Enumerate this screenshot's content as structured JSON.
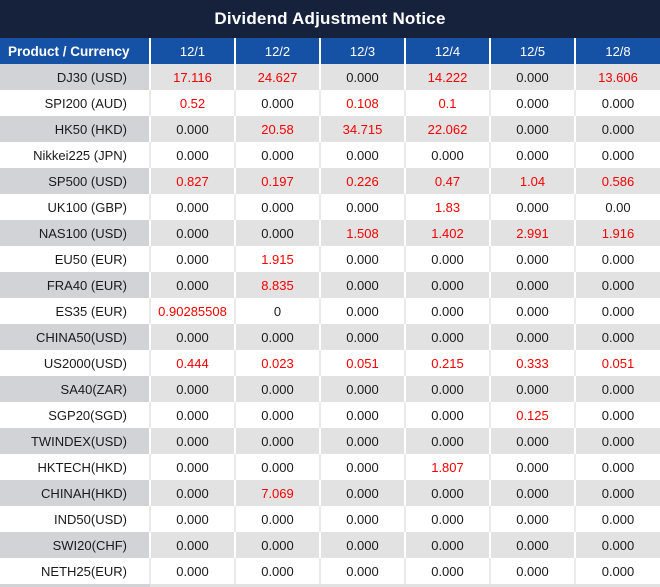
{
  "header": {
    "title": "Dividend Adjustment Notice"
  },
  "table": {
    "columns": [
      "Product / Currency",
      "12/1",
      "12/2",
      "12/3",
      "12/4",
      "12/5",
      "12/8"
    ],
    "rows": [
      {
        "product": "DJ30 (USD)",
        "values": [
          "17.116",
          "24.627",
          "0.000",
          "14.222",
          "0.000",
          "13.606"
        ]
      },
      {
        "product": "SPI200 (AUD)",
        "values": [
          "0.52",
          "0.000",
          "0.108",
          "0.1",
          "0.000",
          "0.000"
        ]
      },
      {
        "product": "HK50 (HKD)",
        "values": [
          "0.000",
          "20.58",
          "34.715",
          "22.062",
          "0.000",
          "0.000"
        ]
      },
      {
        "product": "Nikkei225 (JPN)",
        "values": [
          "0.000",
          "0.000",
          "0.000",
          "0.000",
          "0.000",
          "0.000"
        ]
      },
      {
        "product": "SP500 (USD)",
        "values": [
          "0.827",
          "0.197",
          "0.226",
          "0.47",
          "1.04",
          "0.586"
        ]
      },
      {
        "product": "UK100 (GBP)",
        "values": [
          "0.000",
          "0.000",
          "0.000",
          "1.83",
          "0.000",
          "0.00"
        ]
      },
      {
        "product": "NAS100 (USD)",
        "values": [
          "0.000",
          "0.000",
          "1.508",
          "1.402",
          "2.991",
          "1.916"
        ]
      },
      {
        "product": "EU50 (EUR)",
        "values": [
          "0.000",
          "1.915",
          "0.000",
          "0.000",
          "0.000",
          "0.000"
        ]
      },
      {
        "product": "FRA40 (EUR)",
        "values": [
          "0.000",
          "8.835",
          "0.000",
          "0.000",
          "0.000",
          "0.000"
        ]
      },
      {
        "product": "ES35 (EUR)",
        "values": [
          "0.90285508",
          "0",
          "0.000",
          "0.000",
          "0.000",
          "0.000"
        ]
      },
      {
        "product": "CHINA50(USD)",
        "values": [
          "0.000",
          "0.000",
          "0.000",
          "0.000",
          "0.000",
          "0.000"
        ]
      },
      {
        "product": "US2000(USD)",
        "values": [
          "0.444",
          "0.023",
          "0.051",
          "0.215",
          "0.333",
          "0.051"
        ]
      },
      {
        "product": "SA40(ZAR)",
        "values": [
          "0.000",
          "0.000",
          "0.000",
          "0.000",
          "0.000",
          "0.000"
        ]
      },
      {
        "product": "SGP20(SGD)",
        "values": [
          "0.000",
          "0.000",
          "0.000",
          "0.000",
          "0.125",
          "0.000"
        ]
      },
      {
        "product": "TWINDEX(USD)",
        "values": [
          "0.000",
          "0.000",
          "0.000",
          "0.000",
          "0.000",
          "0.000"
        ]
      },
      {
        "product": "HKTECH(HKD)",
        "values": [
          "0.000",
          "0.000",
          "0.000",
          "1.807",
          "0.000",
          "0.000"
        ]
      },
      {
        "product": "CHINAH(HKD)",
        "values": [
          "0.000",
          "7.069",
          "0.000",
          "0.000",
          "0.000",
          "0.000"
        ]
      },
      {
        "product": "IND50(USD)",
        "values": [
          "0.000",
          "0.000",
          "0.000",
          "0.000",
          "0.000",
          "0.000"
        ]
      },
      {
        "product": "SWI20(CHF)",
        "values": [
          "0.000",
          "0.000",
          "0.000",
          "0.000",
          "0.000",
          "0.000"
        ]
      },
      {
        "product": "NETH25(EUR)",
        "values": [
          "0.000",
          "0.000",
          "0.000",
          "0.000",
          "0.000",
          "0.000"
        ]
      }
    ]
  },
  "colors": {
    "title_bar": "#16213C",
    "header_blue": "#1551A4",
    "row_gray": "#E2E2E2",
    "product_column_gray": "#D2D3D7",
    "highlight_red": "#F40000",
    "text_black": "#1A1A1A"
  }
}
